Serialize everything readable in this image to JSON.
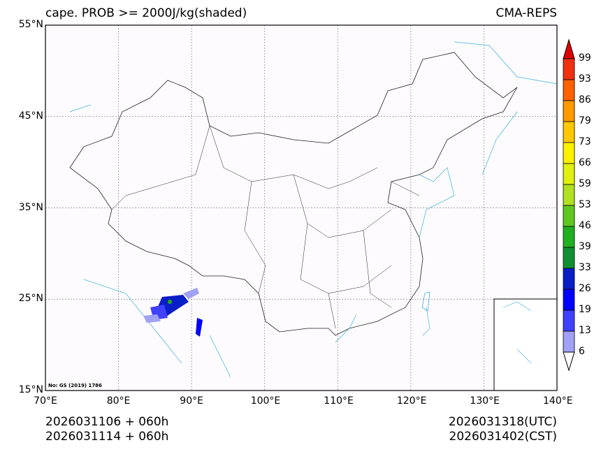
{
  "header": {
    "title": "cape. PROB >= 2000J/kg(shaded)",
    "model": "CMA-REPS"
  },
  "axes": {
    "lat_ticks": [
      "55°N",
      "45°N",
      "35°N",
      "25°N",
      "15°N"
    ],
    "lon_ticks": [
      "70°E",
      "80°E",
      "90°E",
      "100°E",
      "110°E",
      "120°E",
      "130°E",
      "140°E"
    ]
  },
  "map_note": "No: GS (2019) 1786",
  "footer": {
    "init_utc": "2026031106  +  060h",
    "init_cst": "2026031114  +  060h",
    "valid_utc": "2026031318(UTC)",
    "valid_cst": "2026031402(CST)"
  },
  "colorbar": {
    "labels": [
      "99",
      "93",
      "86",
      "79",
      "73",
      "66",
      "59",
      "53",
      "46",
      "39",
      "33",
      "26",
      "19",
      "13",
      "6"
    ],
    "colors": [
      "#a0a0f5",
      "#4040ff",
      "#0000ff",
      "#0a1ec8",
      "#109030",
      "#20b020",
      "#60c820",
      "#b0e020",
      "#e0f010",
      "#fff000",
      "#ffc800",
      "#ff9a00",
      "#ff6000",
      "#f03010"
    ],
    "over_color": "#e00000",
    "under_color": "#ffffff"
  },
  "colors": {
    "coast": "#3ab0e0",
    "border": "#222222",
    "background": "#fdfbfd"
  }
}
